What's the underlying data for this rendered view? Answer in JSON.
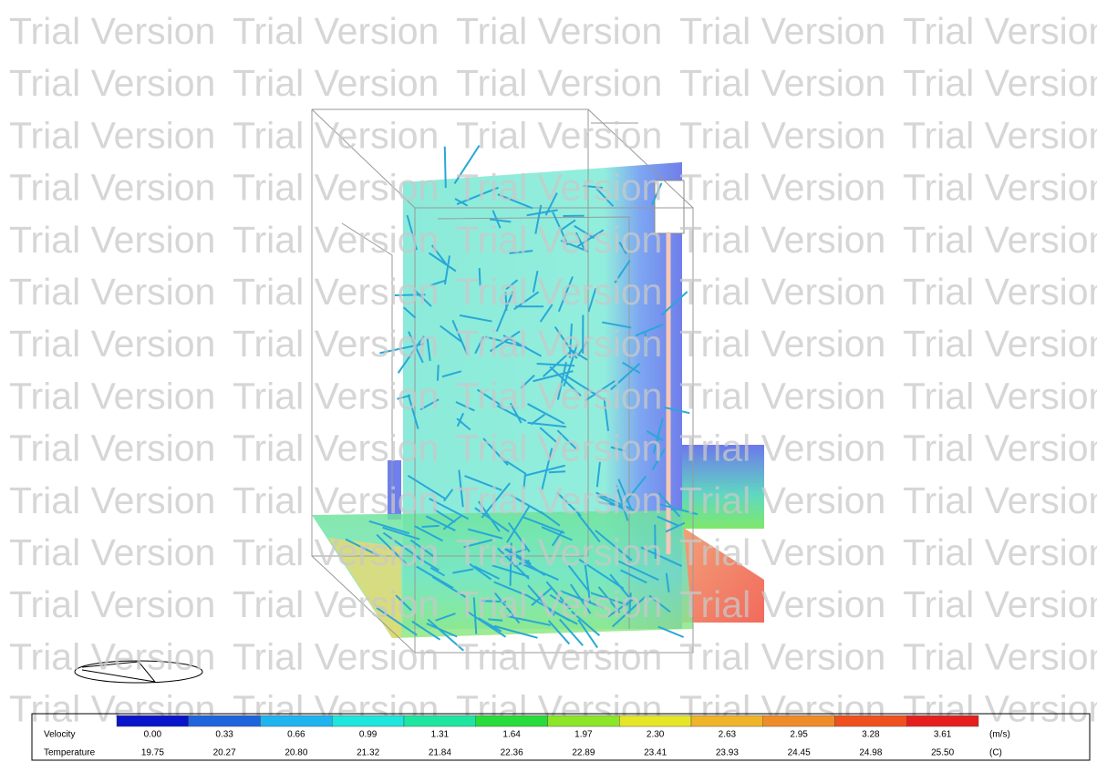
{
  "watermark": "Trial Version",
  "legend": {
    "colors": [
      "#0a14c8",
      "#1e64dc",
      "#1eb4f0",
      "#1ee6dc",
      "#1ee6a0",
      "#28dc3c",
      "#8ce628",
      "#e6e628",
      "#f0b428",
      "#f08c28",
      "#f0501e",
      "#e61e1e"
    ],
    "velocity": {
      "label": "Velocity",
      "unit": "(m/s)",
      "values": [
        "0.00",
        "0.33",
        "0.66",
        "0.99",
        "1.31",
        "1.64",
        "1.97",
        "2.30",
        "2.63",
        "2.95",
        "3.28",
        "3.61"
      ]
    },
    "temperature": {
      "label": "Temperature",
      "unit": "(C)",
      "values": [
        "19.75",
        "20.27",
        "20.80",
        "21.32",
        "21.84",
        "22.36",
        "22.89",
        "23.41",
        "23.93",
        "24.45",
        "24.98",
        "25.50"
      ]
    }
  }
}
